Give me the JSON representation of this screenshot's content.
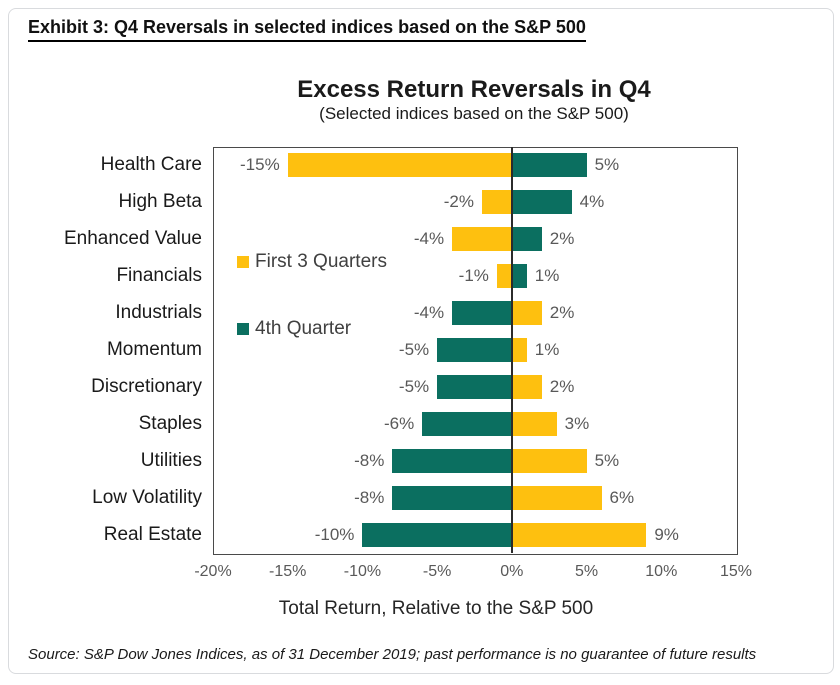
{
  "window": {
    "exhibit_title": "Exhibit 3: Q4 Reversals in selected indices based on the S&P 500",
    "source_note": "Source: S&P Dow Jones Indices, as of 31 December 2019; past performance is no guarantee of future results"
  },
  "chart_data": {
    "type": "bar",
    "orientation": "horizontal",
    "title": "Excess Return Reversals in Q4",
    "subtitle": "(Selected indices based on the S&P 500)",
    "xlabel": "Total Return, Relative to the S&P 500",
    "xlim": [
      -20,
      15
    ],
    "grid": false,
    "zero_line": true,
    "legend_position": "inside-left",
    "data_label_suffix": "%",
    "x_ticks": [
      {
        "value": -20,
        "label": "-20%"
      },
      {
        "value": -15,
        "label": "-15%"
      },
      {
        "value": -10,
        "label": "-10%"
      },
      {
        "value": -5,
        "label": "-5%"
      },
      {
        "value": 0,
        "label": "0%"
      },
      {
        "value": 5,
        "label": "5%"
      },
      {
        "value": 10,
        "label": "10%"
      },
      {
        "value": 15,
        "label": "15%"
      }
    ],
    "categories": [
      "Health Care",
      "High Beta",
      "Enhanced Value",
      "Financials",
      "Industrials",
      "Momentum",
      "Discretionary",
      "Staples",
      "Utilities",
      "Low Volatility",
      "Real Estate"
    ],
    "series": [
      {
        "name": "First 3 Quarters",
        "color": "#FEC00F",
        "values": [
          -15,
          -2,
          -4,
          -1,
          2,
          1,
          2,
          3,
          5,
          6,
          9
        ]
      },
      {
        "name": "4th Quarter",
        "color": "#0B6F60",
        "values": [
          5,
          4,
          2,
          1,
          -4,
          -5,
          -5,
          -6,
          -8,
          -8,
          -10
        ]
      }
    ],
    "colors": {
      "first_3_quarters": "#FEC00F",
      "fourth_quarter": "#0B6F60",
      "value_label": "#595959"
    }
  }
}
